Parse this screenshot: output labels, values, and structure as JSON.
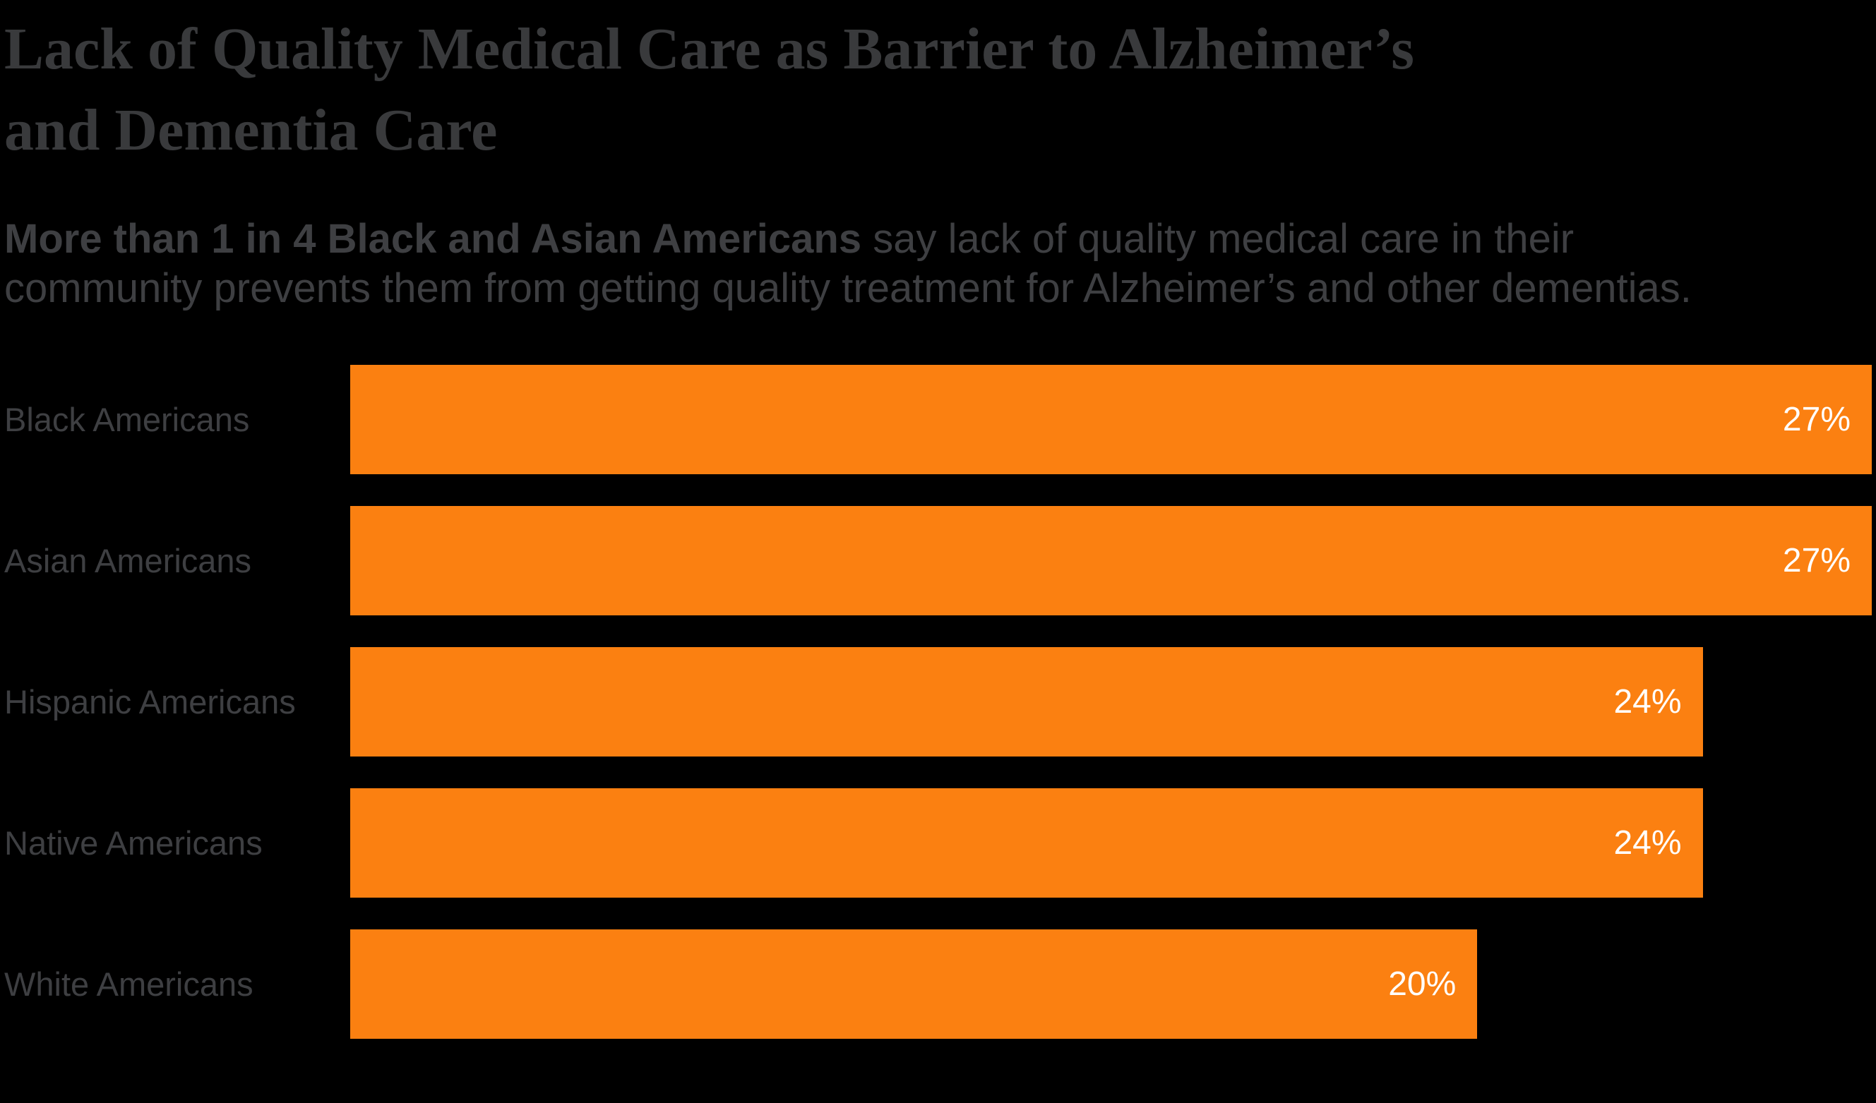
{
  "header": {
    "title_lines": [
      "Lack of Quality Medical Care as Barrier to Alzheimer’s",
      "and Dementia Care"
    ],
    "subtitle_bold": "More than 1 in 4 Black and Asian Americans",
    "subtitle_line1_rest": " say lack of quality medical care in their",
    "subtitle_line2": "community prevents them from getting quality treatment for Alzheimer’s and other dementias."
  },
  "chart_data": {
    "type": "bar",
    "orientation": "horizontal",
    "title": "Lack of Quality Medical Care as Barrier to Alzheimer’s and Dementia Care",
    "subtitle": "More than 1 in 4 Black and Asian Americans say lack of quality medical care in their community prevents them from getting quality treatment for Alzheimer’s and other dementias.",
    "categories": [
      "Black Americans",
      "Asian Americans",
      "Hispanic Americans",
      "Native Americans",
      "White Americans"
    ],
    "values": [
      27,
      27,
      24,
      24,
      20
    ],
    "value_labels": [
      "27%",
      "27%",
      "24%",
      "24%",
      "20%"
    ],
    "xlabel": "",
    "ylabel": "",
    "xlim": [
      0,
      27
    ],
    "grid": false,
    "legend": "none",
    "value_label_position": "inside-end"
  },
  "colors": {
    "background": "#000000",
    "bar": "#fb8011",
    "title_text": "#393a3c",
    "subtitle_text": "#3e3f42",
    "category_text": "#3e3f42",
    "value_text": "#ffffff"
  }
}
